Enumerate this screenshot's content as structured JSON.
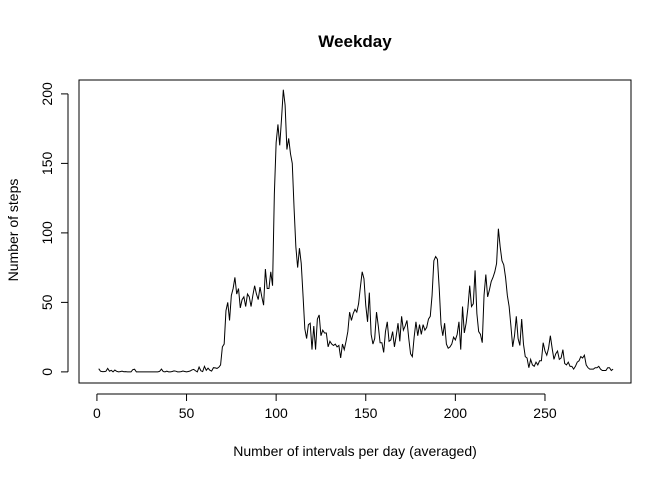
{
  "chart_data": {
    "type": "line",
    "title": "Weekday",
    "xlabel": "Number of intervals per day (averaged)",
    "ylabel": "Number of steps",
    "xlim": [
      -10,
      298
    ],
    "ylim": [
      -8,
      210
    ],
    "xticks": [
      0,
      50,
      100,
      150,
      200,
      250
    ],
    "yticks": [
      0,
      50,
      100,
      150,
      200
    ],
    "grid": false,
    "series": [
      {
        "name": "Weekday",
        "color": "#000000",
        "x": [
          1,
          2,
          3,
          4,
          5,
          6,
          7,
          8,
          9,
          10,
          11,
          12,
          13,
          14,
          15,
          16,
          17,
          18,
          19,
          20,
          21,
          22,
          23,
          24,
          25,
          26,
          27,
          28,
          29,
          30,
          31,
          32,
          33,
          34,
          35,
          36,
          37,
          38,
          39,
          40,
          41,
          42,
          43,
          44,
          45,
          46,
          47,
          48,
          49,
          50,
          51,
          52,
          53,
          54,
          55,
          56,
          57,
          58,
          59,
          60,
          61,
          62,
          63,
          64,
          65,
          66,
          67,
          68,
          69,
          70,
          71,
          72,
          73,
          74,
          75,
          76,
          77,
          78,
          79,
          80,
          81,
          82,
          83,
          84,
          85,
          86,
          87,
          88,
          89,
          90,
          91,
          92,
          93,
          94,
          95,
          96,
          97,
          98,
          99,
          100,
          101,
          102,
          103,
          104,
          105,
          106,
          107,
          108,
          109,
          110,
          111,
          112,
          113,
          114,
          115,
          116,
          117,
          118,
          119,
          120,
          121,
          122,
          123,
          124,
          125,
          126,
          127,
          128,
          129,
          130,
          131,
          132,
          133,
          134,
          135,
          136,
          137,
          138,
          139,
          140,
          141,
          142,
          143,
          144,
          145,
          146,
          147,
          148,
          149,
          150,
          151,
          152,
          153,
          154,
          155,
          156,
          157,
          158,
          159,
          160,
          161,
          162,
          163,
          164,
          165,
          166,
          167,
          168,
          169,
          170,
          171,
          172,
          173,
          174,
          175,
          176,
          177,
          178,
          179,
          180,
          181,
          182,
          183,
          184,
          185,
          186,
          187,
          188,
          189,
          190,
          191,
          192,
          193,
          194,
          195,
          196,
          197,
          198,
          199,
          200,
          201,
          202,
          203,
          204,
          205,
          206,
          207,
          208,
          209,
          210,
          211,
          212,
          213,
          214,
          215,
          216,
          217,
          218,
          219,
          220,
          221,
          222,
          223,
          224,
          225,
          226,
          227,
          228,
          229,
          230,
          231,
          232,
          233,
          234,
          235,
          236,
          237,
          238,
          239,
          240,
          241,
          242,
          243,
          244,
          245,
          246,
          247,
          248,
          249,
          250,
          251,
          252,
          253,
          254,
          255,
          256,
          257,
          258,
          259,
          260,
          261,
          262,
          263,
          264,
          265,
          266,
          267,
          268,
          269,
          270,
          271,
          272,
          273,
          274,
          275,
          276,
          277,
          278,
          279,
          280,
          281,
          282,
          283,
          284,
          285,
          286,
          287,
          288
        ],
        "y": [
          2.3,
          0.5,
          0.2,
          0.2,
          0.4,
          2.5,
          0.5,
          1.1,
          0.0,
          1.3,
          0.4,
          0.0,
          0.2,
          0.5,
          0.1,
          0.2,
          0.0,
          0.0,
          0.0,
          1.6,
          1.9,
          0.0,
          0.0,
          0.0,
          0.0,
          0.0,
          0.0,
          0.0,
          0.0,
          0.0,
          0.0,
          0.0,
          0.0,
          0.0,
          0.4,
          2.0,
          0.2,
          0.0,
          0.5,
          0.0,
          0.0,
          0.3,
          0.7,
          0.5,
          0.0,
          0.0,
          0.2,
          0.6,
          0.3,
          0.0,
          0.3,
          0.6,
          1.4,
          1.8,
          0.8,
          0.0,
          3.5,
          0.8,
          0.2,
          4.0,
          1.1,
          2.7,
          1.2,
          0.6,
          3.0,
          2.9,
          2.5,
          3.3,
          5.0,
          18.0,
          20.0,
          44.0,
          50.0,
          37.0,
          55.0,
          60.0,
          68.0,
          56.0,
          60.0,
          46.0,
          52.0,
          54.0,
          47.0,
          56.0,
          54.0,
          47.0,
          55.0,
          62.0,
          56.0,
          52.0,
          61.0,
          54.0,
          48.0,
          74.0,
          60.0,
          60.0,
          72.0,
          62.0,
          128.0,
          165.0,
          178.0,
          163.0,
          182.0,
          203.0,
          192.0,
          160.0,
          168.0,
          157.0,
          150.0,
          118.0,
          90.0,
          75.0,
          89.0,
          78.0,
          55.0,
          31.0,
          24.0,
          34.0,
          35.0,
          16.0,
          33.0,
          16.0,
          38.0,
          41.0,
          26.0,
          30.0,
          28.0,
          28.0,
          18.0,
          22.0,
          20.0,
          19.0,
          20.0,
          18.0,
          19.0,
          10.0,
          20.0,
          16.0,
          22.0,
          29.0,
          43.0,
          37.0,
          42.0,
          45.0,
          43.0,
          49.0,
          61.0,
          72.0,
          67.0,
          48.0,
          36.0,
          57.0,
          27.0,
          20.0,
          24.0,
          43.0,
          33.0,
          21.0,
          21.0,
          14.0,
          29.0,
          36.0,
          22.0,
          23.0,
          29.0,
          18.0,
          26.0,
          35.0,
          22.0,
          40.0,
          30.0,
          33.0,
          37.0,
          24.0,
          13.0,
          11.0,
          25.0,
          36.0,
          26.0,
          34.0,
          27.0,
          34.0,
          30.0,
          32.0,
          38.0,
          40.0,
          55.0,
          80.0,
          83.0,
          81.0,
          60.0,
          34.0,
          26.0,
          35.0,
          20.0,
          17.0,
          18.0,
          20.0,
          25.0,
          23.0,
          27.0,
          36.0,
          16.0,
          47.0,
          28.0,
          35.0,
          46.0,
          62.0,
          47.0,
          49.0,
          73.0,
          42.0,
          29.0,
          27.0,
          21.0,
          55.0,
          70.0,
          54.0,
          59.0,
          65.0,
          68.0,
          72.0,
          78.0,
          103.0,
          90.0,
          80.0,
          77.0,
          68.0,
          55.0,
          47.0,
          33.0,
          18.0,
          26.0,
          40.0,
          24.0,
          19.0,
          38.0,
          20.0,
          11.0,
          10.0,
          3.0,
          9.0,
          5.0,
          4.0,
          7.0,
          5.0,
          8.0,
          8.0,
          21.0,
          15.0,
          12.0,
          17.0,
          26.0,
          17.0,
          9.0,
          13.0,
          15.0,
          9.0,
          10.0,
          16.0,
          6.0,
          5.0,
          7.0,
          4.0,
          4.0,
          2.0,
          4.0,
          7.0,
          8.0,
          11.0,
          10.0,
          12.0,
          5.0,
          3.0,
          2.0,
          2.0,
          2.0,
          3.0,
          3.0,
          4.0,
          2.0,
          1.0,
          1.0,
          1.0,
          3.0,
          3.0,
          1.0,
          2.0
        ]
      }
    ]
  }
}
